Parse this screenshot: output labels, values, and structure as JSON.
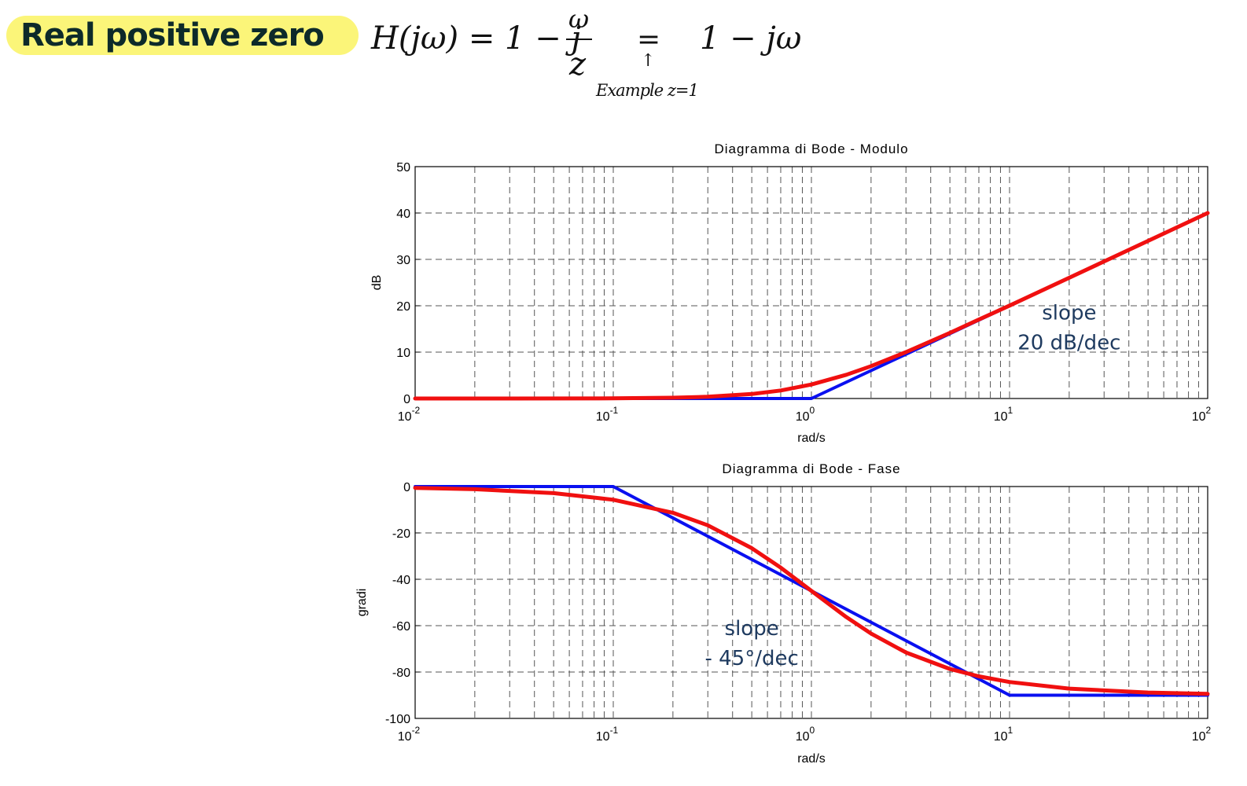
{
  "header": {
    "badge": "Real positive zero",
    "formula": {
      "lhs": "H(jω) = 1 − j",
      "numerator": "ω",
      "denominator": "z",
      "equals": "=",
      "arrow": "↑",
      "example_label": "Example z=1",
      "rhs": "1 − jω"
    }
  },
  "colors": {
    "asymptote": "#0a10f0",
    "exact": "#f01010",
    "badge_bg": "#fbf579",
    "annotation": "#1e3a5f"
  },
  "chart_data": [
    {
      "type": "line",
      "title": "Diagramma di Bode - Modulo",
      "xlabel": "rad/s",
      "ylabel": "dB",
      "x_scale": "log",
      "xlim": [
        0.01,
        100
      ],
      "ylim": [
        0,
        50
      ],
      "yticks": [
        0,
        10,
        20,
        30,
        40,
        50
      ],
      "xticks": [
        {
          "value": 0.01,
          "base": "10",
          "exp": "-2"
        },
        {
          "value": 0.1,
          "base": "10",
          "exp": "-1"
        },
        {
          "value": 1,
          "base": "10",
          "exp": "0"
        },
        {
          "value": 10,
          "base": "10",
          "exp": "1"
        },
        {
          "value": 100,
          "base": "10",
          "exp": "2"
        }
      ],
      "grid": true,
      "series": [
        {
          "color": "#0a10f0",
          "x": [
            0.01,
            1,
            100
          ],
          "y": [
            0,
            0,
            40
          ]
        },
        {
          "color": "#f01010",
          "x": [
            0.01,
            0.03,
            0.1,
            0.2,
            0.3,
            0.5,
            0.7,
            1,
            1.5,
            2,
            3,
            5,
            7,
            10,
            20,
            50,
            100
          ],
          "y": [
            0,
            0.004,
            0.04,
            0.17,
            0.37,
            0.97,
            1.73,
            3.01,
            5.12,
            6.99,
            10.0,
            14.15,
            17.03,
            20.04,
            26.03,
            33.98,
            40.0
          ]
        }
      ],
      "annotation": {
        "lines": [
          "slope",
          "20 dB/dec"
        ],
        "x": 20,
        "y": 17
      }
    },
    {
      "type": "line",
      "title": "Diagramma di Bode - Fase",
      "xlabel": "rad/s",
      "ylabel": "gradi",
      "x_scale": "log",
      "xlim": [
        0.01,
        100
      ],
      "ylim": [
        -100,
        0
      ],
      "yticks": [
        0,
        -20,
        -40,
        -60,
        -80,
        -100
      ],
      "xticks": [
        {
          "value": 0.01,
          "base": "10",
          "exp": "-2"
        },
        {
          "value": 0.1,
          "base": "10",
          "exp": "-1"
        },
        {
          "value": 1,
          "base": "10",
          "exp": "0"
        },
        {
          "value": 10,
          "base": "10",
          "exp": "1"
        },
        {
          "value": 100,
          "base": "10",
          "exp": "2"
        }
      ],
      "grid": true,
      "series": [
        {
          "color": "#0a10f0",
          "x": [
            0.01,
            0.1,
            10,
            100
          ],
          "y": [
            0,
            0,
            -90,
            -90
          ]
        },
        {
          "color": "#f01010",
          "x": [
            0.01,
            0.02,
            0.05,
            0.1,
            0.2,
            0.3,
            0.5,
            0.7,
            1,
            1.5,
            2,
            3,
            5,
            7,
            10,
            20,
            50,
            100
          ],
          "y": [
            -0.57,
            -1.15,
            -2.86,
            -5.71,
            -11.31,
            -16.7,
            -26.57,
            -34.99,
            -45.0,
            -56.31,
            -63.43,
            -71.57,
            -78.69,
            -81.87,
            -84.29,
            -87.14,
            -88.85,
            -89.43
          ]
        }
      ],
      "annotation": {
        "lines": [
          "slope",
          "- 45°/dec"
        ],
        "x": 0.5,
        "y": -64
      }
    }
  ]
}
